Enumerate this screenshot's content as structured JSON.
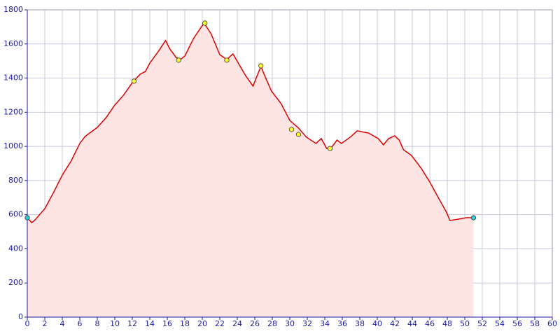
{
  "chart_data": {
    "type": "area",
    "x": [
      0,
      0.5,
      0.9,
      2,
      3,
      4,
      5,
      6,
      6.6,
      8,
      9,
      10,
      11,
      12,
      12.9,
      13.5,
      14,
      15,
      15.8,
      16.3,
      17,
      17.5,
      18,
      19,
      19.8,
      20.2,
      21,
      22,
      22.8,
      23.5,
      24.2,
      25,
      25.8,
      26.2,
      26.7,
      27.2,
      27.9,
      29,
      30,
      31,
      31.9,
      33,
      33.6,
      34.2,
      34.8,
      35.4,
      35.9,
      37,
      37.7,
      39,
      40.1,
      40.7,
      41.3,
      42,
      42.5,
      43,
      43.9,
      45,
      46,
      47,
      47.9,
      48.3,
      49.3,
      50.2,
      51
    ],
    "values": [
      582,
      553,
      570,
      635,
      730,
      832,
      914,
      1017,
      1058,
      1111,
      1168,
      1242,
      1300,
      1373,
      1423,
      1439,
      1488,
      1558,
      1620,
      1570,
      1521,
      1509,
      1529,
      1632,
      1693,
      1722,
      1660,
      1537,
      1509,
      1542,
      1480,
      1410,
      1353,
      1406,
      1468,
      1406,
      1324,
      1251,
      1152,
      1107,
      1054,
      1017,
      1046,
      988,
      996,
      1037,
      1017,
      1058,
      1091,
      1078,
      1046,
      1009,
      1046,
      1062,
      1037,
      980,
      947,
      873,
      791,
      697,
      615,
      566,
      574,
      582,
      582
    ],
    "color": "#dd0000",
    "fill": "#ffe4e4",
    "waypoints": {
      "x": [
        12.2,
        17.3,
        20.3,
        22.8,
        26.7,
        30.2,
        31,
        34.6
      ],
      "values": [
        1382,
        1505,
        1722,
        1505,
        1472,
        1099,
        1070,
        988
      ],
      "color": "#ffff33"
    },
    "endpoints": {
      "x": [
        0,
        51
      ],
      "values": [
        582,
        582
      ],
      "color": "#33ccdd"
    },
    "xlim": [
      0,
      60
    ],
    "ylim": [
      0,
      1800
    ],
    "xticks": [
      0,
      2,
      4,
      6,
      8,
      10,
      12,
      14,
      16,
      18,
      20,
      22,
      24,
      26,
      28,
      30,
      32,
      34,
      36,
      38,
      40,
      42,
      44,
      46,
      48,
      50,
      52,
      54,
      56,
      58,
      60
    ],
    "yticks": [
      0,
      200,
      400,
      600,
      800,
      1000,
      1200,
      1400,
      1600,
      1800
    ],
    "grid": true
  }
}
